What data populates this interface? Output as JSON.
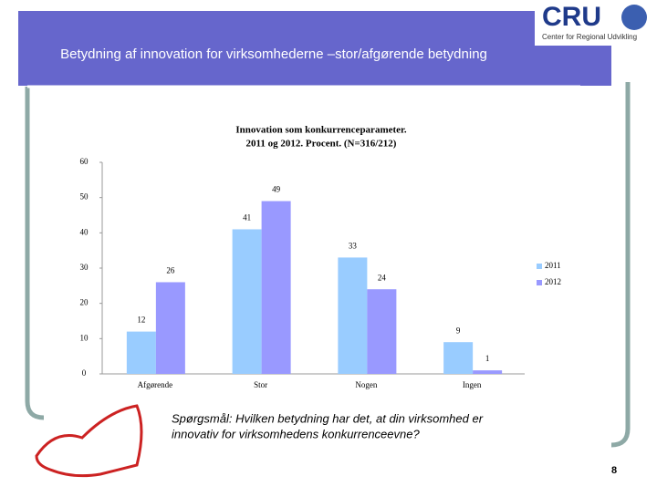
{
  "slide": {
    "title": "Betydning af innovation for virksomhederne –stor/afgørende betydning",
    "logo": "CRU",
    "logo_tagline": "Center for Regional Udvikling",
    "question": [
      "Spørgsmål: Hvilken betydning har det, at din virksomhed er",
      "innovativ for virksomhedens konkurrenceevne?"
    ],
    "page_number": "8"
  },
  "chart_data": {
    "type": "bar",
    "title": [
      "Innovation som konkurrenceparameter.",
      "2011 og 2012. Procent. (N=316/212)"
    ],
    "categories": [
      "Afgørende",
      "Stor",
      "Nogen",
      "Ingen"
    ],
    "series": [
      {
        "name": "2011",
        "color": "#99ccff",
        "values": [
          12,
          41,
          33,
          9
        ]
      },
      {
        "name": "2012",
        "color": "#9999ff",
        "values": [
          26,
          49,
          24,
          1
        ]
      }
    ],
    "ylim": [
      0,
      60
    ],
    "yticks": [
      0,
      10,
      20,
      30,
      40,
      50,
      60
    ],
    "grid": false,
    "legend": "right"
  }
}
